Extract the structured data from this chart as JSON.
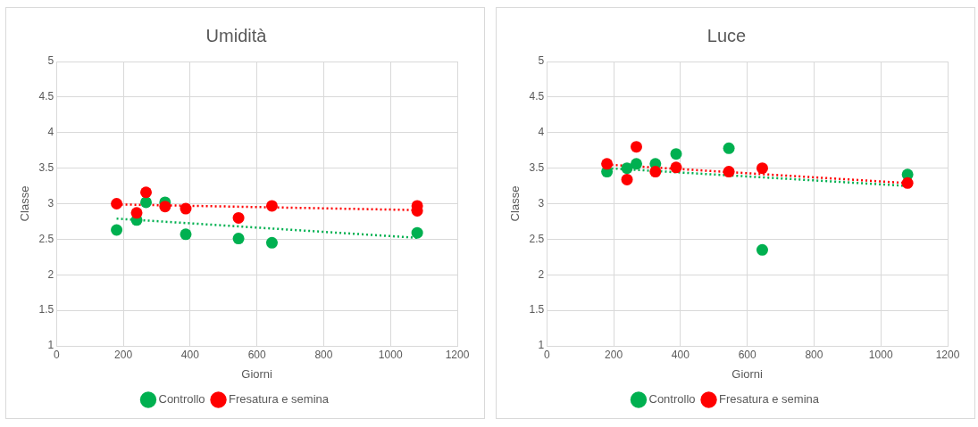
{
  "chart_data": [
    {
      "type": "scatter",
      "title": "Umidità",
      "xlabel": "Giorni",
      "ylabel": "Classe",
      "xlim": [
        0,
        1200
      ],
      "xticks": [
        0,
        200,
        400,
        600,
        800,
        1000,
        1200
      ],
      "ylim": [
        1,
        5
      ],
      "yticks": [
        1,
        1.5,
        2,
        2.5,
        3,
        3.5,
        4,
        4.5,
        5
      ],
      "grid": true,
      "legend": "bottom",
      "marker": "circle",
      "series": [
        {
          "name": "Controllo",
          "color": "#00b050",
          "x": [
            180,
            240,
            268,
            325,
            387,
            545,
            645,
            1080
          ],
          "values": [
            2.63,
            2.77,
            3.02,
            3.02,
            2.57,
            2.51,
            2.45,
            2.59
          ]
        },
        {
          "name": "Fresatura e semina",
          "color": "#ff0000",
          "x": [
            180,
            240,
            268,
            325,
            387,
            545,
            645,
            1080,
            1080
          ],
          "values": [
            3.0,
            2.87,
            3.16,
            2.96,
            2.93,
            2.8,
            2.97,
            2.97,
            2.9
          ]
        },
        {
          "type": "line",
          "color": "#00b050",
          "line_style": "dotted",
          "marker": "none",
          "x": [
            180,
            1080
          ],
          "values": [
            2.79,
            2.52
          ]
        },
        {
          "type": "line",
          "color": "#ff0000",
          "line_style": "dotted",
          "marker": "none",
          "x": [
            180,
            1080
          ],
          "values": [
            2.99,
            2.91
          ]
        }
      ]
    },
    {
      "type": "scatter",
      "title": "Luce",
      "xlabel": "Giorni",
      "ylabel": "Classe",
      "xlim": [
        0,
        1200
      ],
      "xticks": [
        0,
        200,
        400,
        600,
        800,
        1000,
        1200
      ],
      "ylim": [
        1,
        5
      ],
      "yticks": [
        1,
        1.5,
        2,
        2.5,
        3,
        3.5,
        4,
        4.5,
        5
      ],
      "grid": true,
      "legend": "bottom",
      "marker": "circle",
      "series": [
        {
          "name": "Controllo",
          "color": "#00b050",
          "x": [
            180,
            240,
            268,
            325,
            387,
            545,
            645,
            1080
          ],
          "values": [
            3.45,
            3.5,
            3.56,
            3.56,
            3.7,
            3.78,
            2.35,
            3.41
          ]
        },
        {
          "name": "Fresatura e semina",
          "color": "#ff0000",
          "x": [
            180,
            240,
            268,
            325,
            387,
            545,
            645,
            1080
          ],
          "values": [
            3.56,
            3.34,
            3.8,
            3.45,
            3.51,
            3.45,
            3.5,
            3.29
          ]
        },
        {
          "type": "line",
          "color": "#00b050",
          "line_style": "dotted",
          "marker": "none",
          "x": [
            180,
            1080
          ],
          "values": [
            3.5,
            3.25
          ]
        },
        {
          "type": "line",
          "color": "#ff0000",
          "line_style": "dotted",
          "marker": "none",
          "x": [
            180,
            1080
          ],
          "values": [
            3.55,
            3.29
          ]
        }
      ]
    }
  ]
}
